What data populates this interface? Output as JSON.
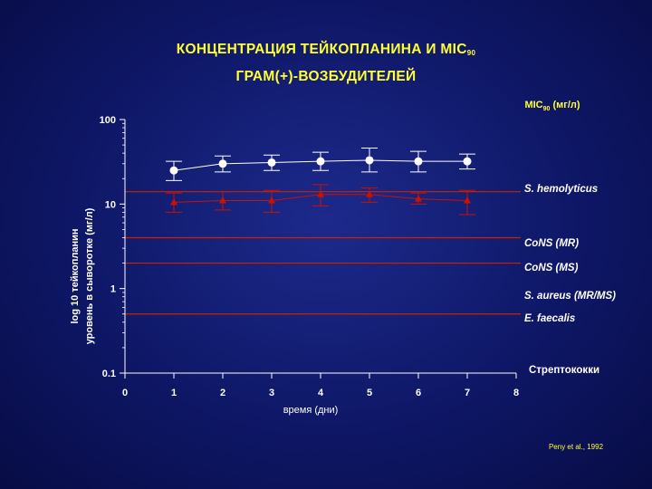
{
  "title": {
    "line1_main": "КОНЦЕНТРАЦИЯ  ТЕЙКОПЛАНИНА  И  MIC",
    "line1_sub": "90",
    "line2": "ГРАМ(+)-ВОЗБУДИТЕЛЕЙ"
  },
  "mic_header": {
    "main": "MIC",
    "sub": "90",
    "unit": " (мг/л)"
  },
  "source": "Peny et al., 1992",
  "colors": {
    "title": "#ffff33",
    "axis": "#ffffff",
    "reference_line": "#cc2200",
    "series_white": "#ffffff",
    "series_red": "#cc1100"
  },
  "chart_data": {
    "type": "line",
    "xlabel": "время (дни)",
    "ylabel_line1": "log 10 тейкопланин",
    "ylabel_line2": "уровень в сыворотке (мг/л)",
    "y_scale": "log",
    "xlim": [
      0,
      8
    ],
    "ylim": [
      0.1,
      100
    ],
    "x_ticks": [
      "0",
      "1",
      "2",
      "3",
      "4",
      "5",
      "6",
      "7",
      "8"
    ],
    "y_ticks": [
      {
        "value": 100,
        "label": "100"
      },
      {
        "value": 10,
        "label": "10"
      },
      {
        "value": 1,
        "label": "1"
      },
      {
        "value": 0.1,
        "label": "0.1"
      }
    ],
    "series": [
      {
        "marker": "circle",
        "color": "#ffffff",
        "points": [
          {
            "x": 1,
            "y": 25,
            "lo": 19,
            "hi": 32
          },
          {
            "x": 2,
            "y": 30,
            "lo": 24,
            "hi": 37
          },
          {
            "x": 3,
            "y": 31,
            "lo": 25,
            "hi": 38
          },
          {
            "x": 4,
            "y": 32,
            "lo": 25,
            "hi": 41
          },
          {
            "x": 5,
            "y": 33,
            "lo": 24,
            "hi": 46
          },
          {
            "x": 6,
            "y": 32,
            "lo": 24,
            "hi": 42
          },
          {
            "x": 7,
            "y": 32,
            "lo": 26,
            "hi": 39
          }
        ]
      },
      {
        "marker": "triangle",
        "color": "#cc1100",
        "points": [
          {
            "x": 1,
            "y": 10.5,
            "lo": 8.0,
            "hi": 13.5
          },
          {
            "x": 2,
            "y": 11,
            "lo": 8.5,
            "hi": 14
          },
          {
            "x": 3,
            "y": 11,
            "lo": 8.0,
            "hi": 14.5
          },
          {
            "x": 4,
            "y": 13,
            "lo": 9.5,
            "hi": 17
          },
          {
            "x": 5,
            "y": 13,
            "lo": 10.5,
            "hi": 15.5
          },
          {
            "x": 6,
            "y": 11.5,
            "lo": 10,
            "hi": 13.5
          },
          {
            "x": 7,
            "y": 11,
            "lo": 7.5,
            "hi": 14.5
          }
        ]
      }
    ],
    "reference_lines": [
      {
        "label": "S. hemolyticus",
        "value": 14,
        "italic": true
      },
      {
        "label": "CoNS (MR)",
        "value": 4,
        "italic": true
      },
      {
        "label": "CoNS (MS)",
        "value": 2,
        "italic": true
      },
      {
        "label": "S. aureus (MR/MS)",
        "value": 0.55,
        "italic": true,
        "line_value": 0.5
      },
      {
        "label": "E. faecalis",
        "value": 0.5,
        "italic": true,
        "no_line": true
      },
      {
        "label": "Стрептококки",
        "value": 0.1,
        "italic": false,
        "no_line": true
      }
    ]
  }
}
